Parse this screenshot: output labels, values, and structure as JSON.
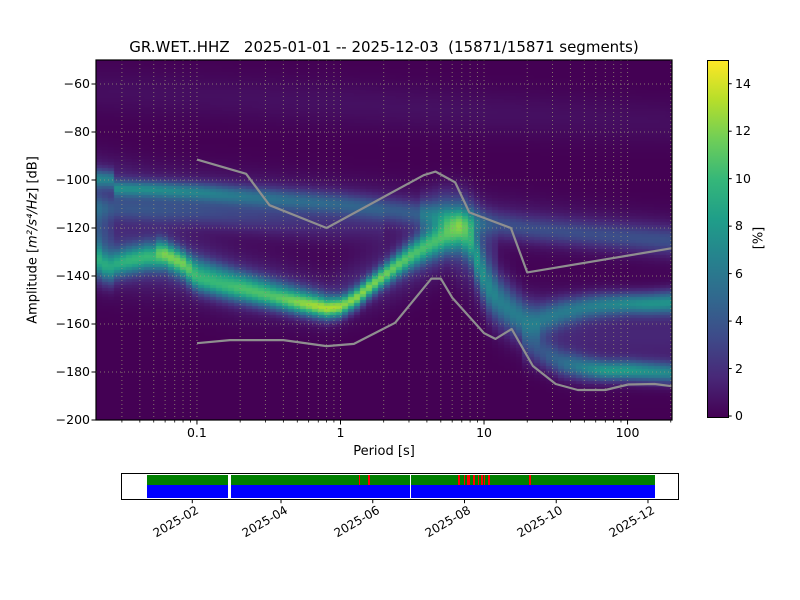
{
  "figure": {
    "title": "GR.WET..HHZ   2025-01-01 -- 2025-12-03  (15871/15871 segments)"
  },
  "axes": {
    "xlabel": "Period [s]",
    "ylabel_prefix": "Amplitude [",
    "ylabel_math": "m²/s⁴/Hz",
    "ylabel_suffix": "] [dB]"
  },
  "colorbar": {
    "label": "[%]",
    "tick_values": [
      0,
      2,
      4,
      6,
      8,
      10,
      12,
      14
    ],
    "tick_labels": [
      "0",
      "2",
      "4",
      "6",
      "8",
      "10",
      "12",
      "14"
    ],
    "vmin": 0,
    "vmax": 15,
    "viridis_stops": [
      "#440154",
      "#482878",
      "#3e4a89",
      "#31688e",
      "#26828e",
      "#1f9e89",
      "#35b779",
      "#6ece58",
      "#b5de2b",
      "#fde725"
    ]
  },
  "chart_data": {
    "type": "heatmap",
    "title": "GR.WET..HHZ   2025-01-01 -- 2025-12-03  (15871/15871 segments)",
    "xlabel": "Period [s]",
    "ylabel": "Amplitude [m²/s⁴/Hz] [dB]",
    "xscale": "log",
    "xlim": [
      0.0198,
      204
    ],
    "ylim": [
      -200,
      -50
    ],
    "xticks": [
      0.1,
      1,
      10,
      100
    ],
    "xtick_labels": [
      "0.1",
      "1",
      "10",
      "100"
    ],
    "ytick_values": [
      -60,
      -80,
      -100,
      -120,
      -140,
      -160,
      -180,
      -200
    ],
    "ytick_labels": [
      "−60",
      "−80",
      "−100",
      "−120",
      "−140",
      "−160",
      "−180",
      "−200"
    ],
    "grid": true,
    "colormap": "viridis",
    "value_unit": "%",
    "value_range": [
      0,
      15
    ],
    "grid_color": "#9a9a78",
    "noise_model_color": "#8f8f8f",
    "background_color": "#440154",
    "nhnm": [
      [
        0.1,
        -91.5
      ],
      [
        0.22,
        -97.4
      ],
      [
        0.32,
        -110.5
      ],
      [
        0.8,
        -120.0
      ],
      [
        3.8,
        -98.0
      ],
      [
        4.6,
        -96.5
      ],
      [
        6.3,
        -101.0
      ],
      [
        7.9,
        -113.5
      ],
      [
        15.4,
        -120.0
      ],
      [
        20.0,
        -138.5
      ],
      [
        204,
        -128.4
      ]
    ],
    "nlnm": [
      [
        0.1,
        -168.0
      ],
      [
        0.17,
        -166.7
      ],
      [
        0.4,
        -166.7
      ],
      [
        0.8,
        -169.2
      ],
      [
        1.24,
        -168.3
      ],
      [
        2.4,
        -159.5
      ],
      [
        4.3,
        -141.1
      ],
      [
        5.0,
        -141.1
      ],
      [
        6.0,
        -149.0
      ],
      [
        10.0,
        -163.8
      ],
      [
        12.0,
        -166.2
      ],
      [
        15.6,
        -162.1
      ],
      [
        21.9,
        -177.5
      ],
      [
        31.6,
        -185.0
      ],
      [
        45.0,
        -187.5
      ],
      [
        70.0,
        -187.5
      ],
      [
        101.0,
        -185.2
      ],
      [
        154.0,
        -185.0
      ],
      [
        204,
        -185.9
      ]
    ],
    "ridges": [
      {
        "name": "main-mode",
        "pts": [
          [
            0.0198,
            -133,
            6.5,
            5
          ],
          [
            0.023,
            -136,
            7,
            4.5
          ],
          [
            0.0258,
            -136.5,
            7,
            4.5
          ],
          [
            0.0263,
            -135.5,
            7,
            4
          ],
          [
            0.032,
            -134,
            7.5,
            4
          ],
          [
            0.045,
            -132,
            7.8,
            4
          ],
          [
            0.06,
            -132,
            7.8,
            4
          ],
          [
            0.08,
            -136,
            7.5,
            3.8
          ],
          [
            0.1,
            -141.5,
            7.5,
            3.6
          ],
          [
            0.15,
            -144.5,
            7.5,
            3.5
          ],
          [
            0.23,
            -147,
            7.8,
            3.4
          ],
          [
            0.35,
            -149.5,
            8.2,
            3.2
          ],
          [
            0.55,
            -152,
            10,
            3.1
          ],
          [
            0.8,
            -153.8,
            11,
            3
          ],
          [
            1.0,
            -153,
            11,
            3
          ],
          [
            1.3,
            -149,
            11,
            3
          ],
          [
            1.6,
            -144.5,
            10.5,
            3
          ],
          [
            2.0,
            -140,
            10,
            3.2
          ],
          [
            2.5,
            -135.5,
            9.5,
            3.5
          ],
          [
            3.2,
            -131,
            8.8,
            4
          ],
          [
            4.2,
            -127,
            8,
            4.5
          ],
          [
            5.5,
            -123.5,
            7.5,
            5
          ],
          [
            6.8,
            -122,
            7.5,
            5.5
          ],
          [
            8,
            -125,
            6.5,
            6
          ],
          [
            9.4,
            -137,
            5.5,
            7
          ],
          [
            11,
            -146,
            5,
            7
          ],
          [
            13,
            -151,
            4.5,
            6.5
          ],
          [
            16,
            -155.5,
            4.5,
            6
          ],
          [
            20,
            -159,
            4.5,
            5.5
          ],
          [
            25,
            -159.5,
            4.8,
            5
          ]
        ]
      },
      {
        "name": "upper-branch",
        "pts": [
          [
            25,
            -158,
            4.5,
            4.5
          ],
          [
            35,
            -155,
            5,
            4
          ],
          [
            50,
            -153,
            5.5,
            3.6
          ],
          [
            70,
            -152,
            6,
            3.4
          ],
          [
            100,
            -151.5,
            6.5,
            3.2
          ],
          [
            140,
            -151.5,
            7,
            3.2
          ],
          [
            204,
            -151,
            7,
            3.4
          ]
        ]
      },
      {
        "name": "lower-branch",
        "pts": [
          [
            18,
            -168,
            1.5,
            5
          ],
          [
            25,
            -172,
            3,
            4.5
          ],
          [
            35,
            -176.5,
            4.5,
            4
          ],
          [
            50,
            -178.5,
            6,
            3.4
          ],
          [
            70,
            -179.5,
            7.5,
            3
          ],
          [
            100,
            -179.5,
            7.5,
            3
          ],
          [
            140,
            -180,
            7,
            3
          ],
          [
            204,
            -180.5,
            6.5,
            3
          ]
        ]
      },
      {
        "name": "high-band",
        "pts": [
          [
            0.0198,
            -99.5,
            5,
            2.6
          ],
          [
            0.0258,
            -100,
            5,
            2.6
          ],
          [
            0.0263,
            -103.5,
            5.5,
            2.4
          ],
          [
            0.05,
            -104,
            5.5,
            2.4
          ],
          [
            0.1,
            -105,
            5,
            2.6
          ],
          [
            0.2,
            -106.5,
            4.2,
            2.8
          ],
          [
            0.4,
            -108,
            3.6,
            3
          ],
          [
            1,
            -110,
            3.2,
            3.2
          ],
          [
            3,
            -113.5,
            3,
            3.4
          ],
          [
            8,
            -117,
            2.6,
            3.6
          ],
          [
            20,
            -120.5,
            2.5,
            3.6
          ],
          [
            60,
            -123,
            2.5,
            3.8
          ],
          [
            204,
            -125.5,
            2.6,
            4
          ]
        ]
      },
      {
        "name": "high-band-halo",
        "pts": [
          [
            0.0198,
            -101,
            1.8,
            8
          ],
          [
            0.05,
            -106,
            1.8,
            8
          ],
          [
            0.5,
            -110,
            1.5,
            8
          ],
          [
            5,
            -115,
            1.2,
            8
          ],
          [
            60,
            -121,
            1.1,
            7
          ],
          [
            204,
            -124,
            1.1,
            7
          ]
        ]
      },
      {
        "name": "second-band",
        "pts": [
          [
            0.0198,
            -111.5,
            2.6,
            3.5
          ],
          [
            0.0263,
            -112,
            2.6,
            3.5
          ],
          [
            0.1,
            -113.5,
            2.2,
            4
          ],
          [
            0.3,
            -116,
            1.6,
            5
          ],
          [
            0.8,
            -118,
            1,
            6
          ],
          [
            2,
            -119,
            0.6,
            6
          ]
        ]
      },
      {
        "name": "parallel-strand",
        "pts": [
          [
            0.05,
            -127,
            2.5,
            3
          ],
          [
            0.1,
            -135.5,
            3.5,
            3
          ],
          [
            0.2,
            -141,
            3.5,
            3
          ],
          [
            0.4,
            -145.5,
            3,
            3
          ],
          [
            0.7,
            -149,
            2.5,
            3
          ],
          [
            1,
            -151,
            0.8,
            3
          ]
        ]
      },
      {
        "name": "mode-halo",
        "pts": [
          [
            0.0198,
            -129,
            2.5,
            10
          ],
          [
            0.06,
            -133,
            2.2,
            10
          ],
          [
            0.2,
            -143,
            2,
            9
          ],
          [
            0.8,
            -150,
            1.5,
            8
          ],
          [
            2.5,
            -137,
            1.8,
            9
          ],
          [
            5.5,
            -124,
            2.2,
            10
          ],
          [
            8,
            -130,
            2.2,
            12
          ],
          [
            12,
            -148,
            2,
            10
          ],
          [
            20,
            -160,
            1.8,
            9
          ],
          [
            50,
            -165,
            1.6,
            11
          ],
          [
            204,
            -165,
            1.6,
            11
          ]
        ]
      },
      {
        "name": "peak-smear",
        "pts": [
          [
            3.5,
            -115,
            1.5,
            6
          ],
          [
            5,
            -112,
            2.2,
            6
          ],
          [
            7,
            -112,
            2.2,
            6
          ],
          [
            9,
            -118,
            1.5,
            7
          ],
          [
            12,
            -130,
            0.8,
            8
          ]
        ]
      },
      {
        "name": "left-edge-smear",
        "pts": [
          [
            0.0198,
            -118,
            2.5,
            9
          ],
          [
            0.023,
            -120,
            1.5,
            8
          ],
          [
            0.0263,
            -122,
            0.5,
            6
          ]
        ]
      },
      {
        "name": "faint-high-tail",
        "pts": [
          [
            0.0198,
            -63,
            0.55,
            7
          ],
          [
            0.1,
            -65,
            0.6,
            7
          ],
          [
            1,
            -68,
            0.65,
            7
          ],
          [
            10,
            -72,
            0.65,
            7
          ],
          [
            204,
            -76,
            0.55,
            7
          ]
        ]
      }
    ]
  },
  "timeline": {
    "psd_color": "#007f00",
    "data_color": "#0000ff",
    "gap_color": "#ff0000",
    "domain_days": [
      -16.4,
      353.3
    ],
    "coverage_segments": [
      [
        "2025-01-01",
        "2025-02-23"
      ],
      [
        "2025-02-26",
        "2025-06-13"
      ],
      [
        "2025-06-14",
        "2025-06-24"
      ],
      [
        "2025-06-26",
        "2025-12-04"
      ]
    ],
    "red_marks": [
      {
        "date": "2025-05-22",
        "w": 1.5
      },
      {
        "date": "2025-05-28",
        "w": 2
      },
      {
        "date": "2025-07-27",
        "w": 2
      },
      {
        "date": "2025-07-31",
        "w": 1.5
      },
      {
        "date": "2025-08-02",
        "w": 3
      },
      {
        "date": "2025-08-06",
        "w": 2
      },
      {
        "date": "2025-08-09",
        "w": 1.5
      },
      {
        "date": "2025-08-11",
        "w": 2
      },
      {
        "date": "2025-08-13",
        "w": 1.5
      },
      {
        "date": "2025-08-16",
        "w": 2
      },
      {
        "date": "2025-09-12",
        "w": 2
      }
    ],
    "tick_labels": [
      "2025-02",
      "2025-04",
      "2025-06",
      "2025-08",
      "2025-10",
      "2025-12"
    ],
    "tick_days": [
      31,
      90,
      151,
      212,
      273,
      334
    ]
  }
}
